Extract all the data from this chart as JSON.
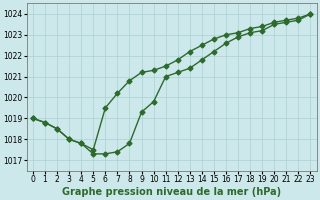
{
  "x": [
    0,
    1,
    2,
    3,
    4,
    5,
    6,
    7,
    8,
    9,
    10,
    11,
    12,
    13,
    14,
    15,
    16,
    17,
    18,
    19,
    20,
    21,
    22,
    23
  ],
  "line1": [
    1019.0,
    1018.8,
    1018.5,
    1018.0,
    1017.8,
    1017.5,
    1019.5,
    1020.2,
    1020.8,
    1021.2,
    1021.3,
    1021.5,
    1021.8,
    1022.2,
    1022.5,
    1022.8,
    1023.0,
    1023.1,
    1023.3,
    1023.4,
    1023.6,
    1023.7,
    1023.8,
    1024.0
  ],
  "line2": [
    1019.0,
    1018.8,
    1018.5,
    1018.0,
    1017.8,
    1017.3,
    1017.3,
    1017.4,
    1017.8,
    1019.3,
    1019.8,
    1021.0,
    1021.2,
    1021.4,
    1021.8,
    1022.2,
    1022.6,
    1022.9,
    1023.1,
    1023.2,
    1023.5,
    1023.6,
    1023.7,
    1024.0
  ],
  "ylim": [
    1016.5,
    1024.5
  ],
  "yticks": [
    1017,
    1018,
    1019,
    1020,
    1021,
    1022,
    1023,
    1024
  ],
  "xlim": [
    -0.5,
    23.5
  ],
  "xticks": [
    0,
    1,
    2,
    3,
    4,
    5,
    6,
    7,
    8,
    9,
    10,
    11,
    12,
    13,
    14,
    15,
    16,
    17,
    18,
    19,
    20,
    21,
    22,
    23
  ],
  "xlabel": "Graphe pression niveau de la mer (hPa)",
  "line_color": "#2d6a2d",
  "bg_color": "#cce8ea",
  "grid_color": "#aad0d2",
  "marker": "D",
  "marker_size": 2.5,
  "line_width": 1.0,
  "xlabel_fontsize": 7,
  "tick_fontsize": 5.5
}
